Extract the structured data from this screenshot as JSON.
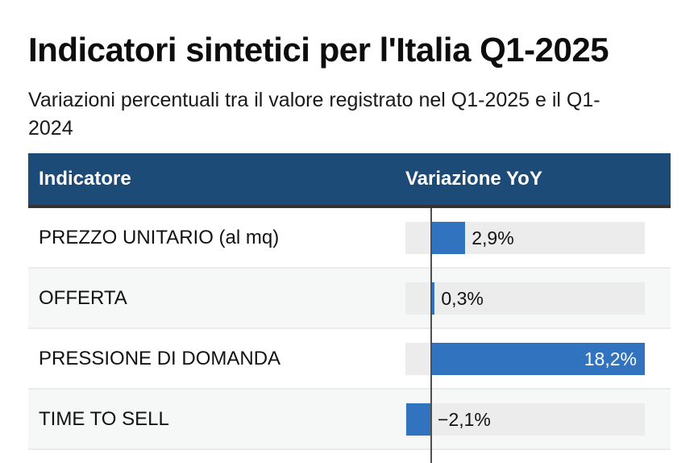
{
  "page": {
    "title": "Indicatori sintetici per l'Italia Q1-2025",
    "subtitle": "Variazioni percentuali tra il valore registrato nel Q1-2025 e il Q1-2024"
  },
  "table": {
    "columns": {
      "indicator": "Indicatore",
      "variation": "Variazione YoY"
    }
  },
  "chart_data": {
    "type": "bar",
    "orientation": "horizontal",
    "title": "Indicatori sintetici per l'Italia Q1-2025",
    "subtitle": "Variazioni percentuali tra il valore registrato nel Q1-2025 e il Q1-2024",
    "categories": [
      "PREZZO UNITARIO (al mq)",
      "OFFERTA",
      "PRESSIONE DI DOMANDA",
      "TIME TO SELL"
    ],
    "values": [
      2.9,
      0.3,
      18.2,
      -2.1
    ],
    "value_labels": [
      "2,9%",
      "0,3%",
      "18,2%",
      "−2,1%"
    ],
    "unit": "%",
    "xlim": [
      -2.2,
      18.2
    ],
    "zero_line": true,
    "grid": false,
    "legend": "none"
  },
  "colors": {
    "header_bg": "#1d4b77",
    "header_text": "#ffffff",
    "header_border": "#333333",
    "bar": "#3173be",
    "track": "#ececec",
    "row_alt": "#f6f7f7",
    "divider": "#ebebeb",
    "zero": "#4f4f4f",
    "text": "#111111"
  }
}
